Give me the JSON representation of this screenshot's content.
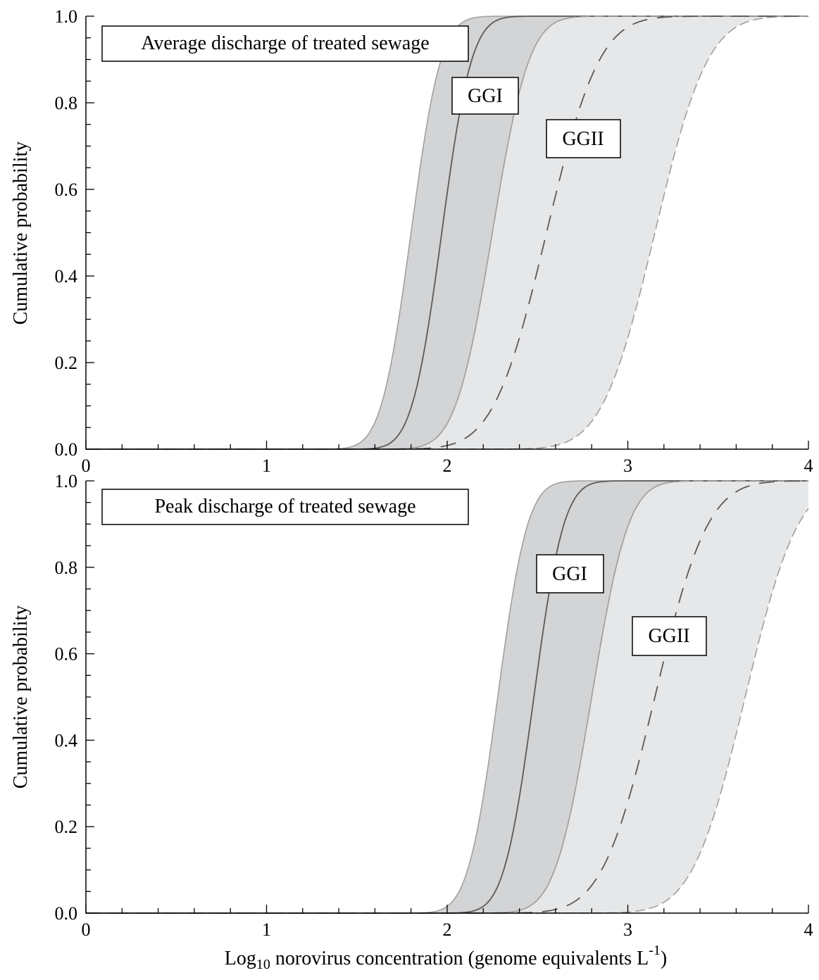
{
  "chart_data": [
    {
      "type": "line",
      "subtype": "cumulative-distribution-with-bands",
      "title": "Average discharge of treated sewage",
      "xlabel": "",
      "ylabel": "Cumulative probability",
      "xlim": [
        0,
        4
      ],
      "ylim": [
        0.0,
        1.0
      ],
      "x_ticks": [
        "0",
        "1",
        "2",
        "3",
        "4"
      ],
      "y_ticks": [
        "0.0",
        "0.2",
        "0.4",
        "0.6",
        "0.8",
        "1.0"
      ],
      "grid": false,
      "series": [
        {
          "name": "GGI",
          "line_style": "solid",
          "color": "#5a5a5a",
          "band_color": "#d3d4d6",
          "median": {
            "mu": 1.97,
            "sigma": 0.13
          },
          "lower": {
            "mu": 1.8,
            "sigma": 0.13
          },
          "upper": {
            "mu": 2.25,
            "sigma": 0.16
          }
        },
        {
          "name": "GGII",
          "line_style": "dashed",
          "color": "#5a5a5a",
          "band_color": "#e6e7e8",
          "median": {
            "mu": 2.55,
            "sigma": 0.23
          },
          "lower": {
            "mu": 2.25,
            "sigma": 0.16
          },
          "upper": {
            "mu": 3.15,
            "sigma": 0.23
          }
        }
      ],
      "annotations": [
        "GGI",
        "GGII"
      ]
    },
    {
      "type": "line",
      "subtype": "cumulative-distribution-with-bands",
      "title": "Peak discharge of treated sewage",
      "xlabel": "Log10 norovirus concentration (genome equivalents L-1)",
      "ylabel": "Cumulative probability",
      "xlim": [
        0,
        4
      ],
      "ylim": [
        0.0,
        1.0
      ],
      "x_ticks": [
        "0",
        "1",
        "2",
        "3",
        "4"
      ],
      "y_ticks": [
        "0.0",
        "0.2",
        "0.4",
        "0.6",
        "0.8",
        "1.0"
      ],
      "grid": false,
      "series": [
        {
          "name": "GGI",
          "line_style": "solid",
          "color": "#5a5a5a",
          "band_color": "#d3d4d6",
          "median": {
            "mu": 2.48,
            "sigma": 0.13
          },
          "lower": {
            "mu": 2.28,
            "sigma": 0.13
          },
          "upper": {
            "mu": 2.8,
            "sigma": 0.16
          }
        },
        {
          "name": "GGII",
          "line_style": "dashed",
          "color": "#5a5a5a",
          "band_color": "#e6e7e8",
          "median": {
            "mu": 3.15,
            "sigma": 0.23
          },
          "lower": {
            "mu": 2.8,
            "sigma": 0.16
          },
          "upper": {
            "mu": 3.65,
            "sigma": 0.23
          }
        }
      ],
      "annotations": [
        "GGI",
        "GGII"
      ]
    }
  ],
  "xlabel_parts": {
    "prefix": "Log",
    "sub": "10",
    "middle": " norovirus concentration (genome equivalents L",
    "sup": "-1",
    "suffix": ")"
  }
}
